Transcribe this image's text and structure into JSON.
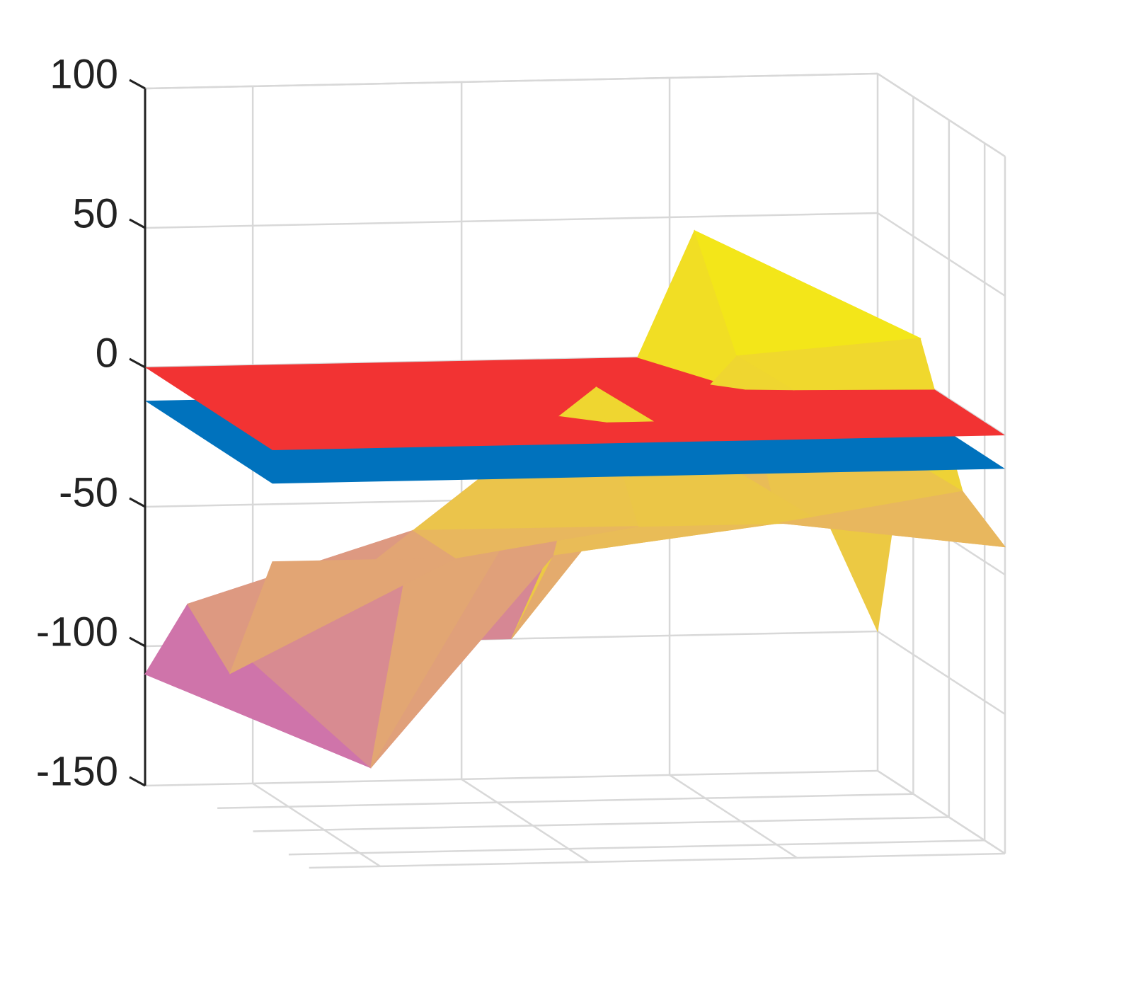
{
  "chart_data": {
    "type": "surface3d",
    "zlim": [
      -150,
      100
    ],
    "zticks": [
      -150,
      -100,
      -50,
      0,
      50,
      100
    ],
    "grid": true,
    "surface": {
      "colormap": [
        "#c458c8",
        "#e6b068",
        "#f7f700"
      ],
      "z": [
        [
          -110,
          -100,
          -100,
          45,
          -100
        ],
        [
          -75,
          -135,
          -60,
          10,
          15
        ],
        [
          -90,
          -40,
          10,
          -40,
          -30
        ],
        [
          -40,
          -40,
          -30,
          -30,
          -40
        ]
      ]
    },
    "planes": [
      {
        "z": -12,
        "color": "#0072bd"
      },
      {
        "z": 0,
        "color": "#f23333"
      }
    ]
  }
}
